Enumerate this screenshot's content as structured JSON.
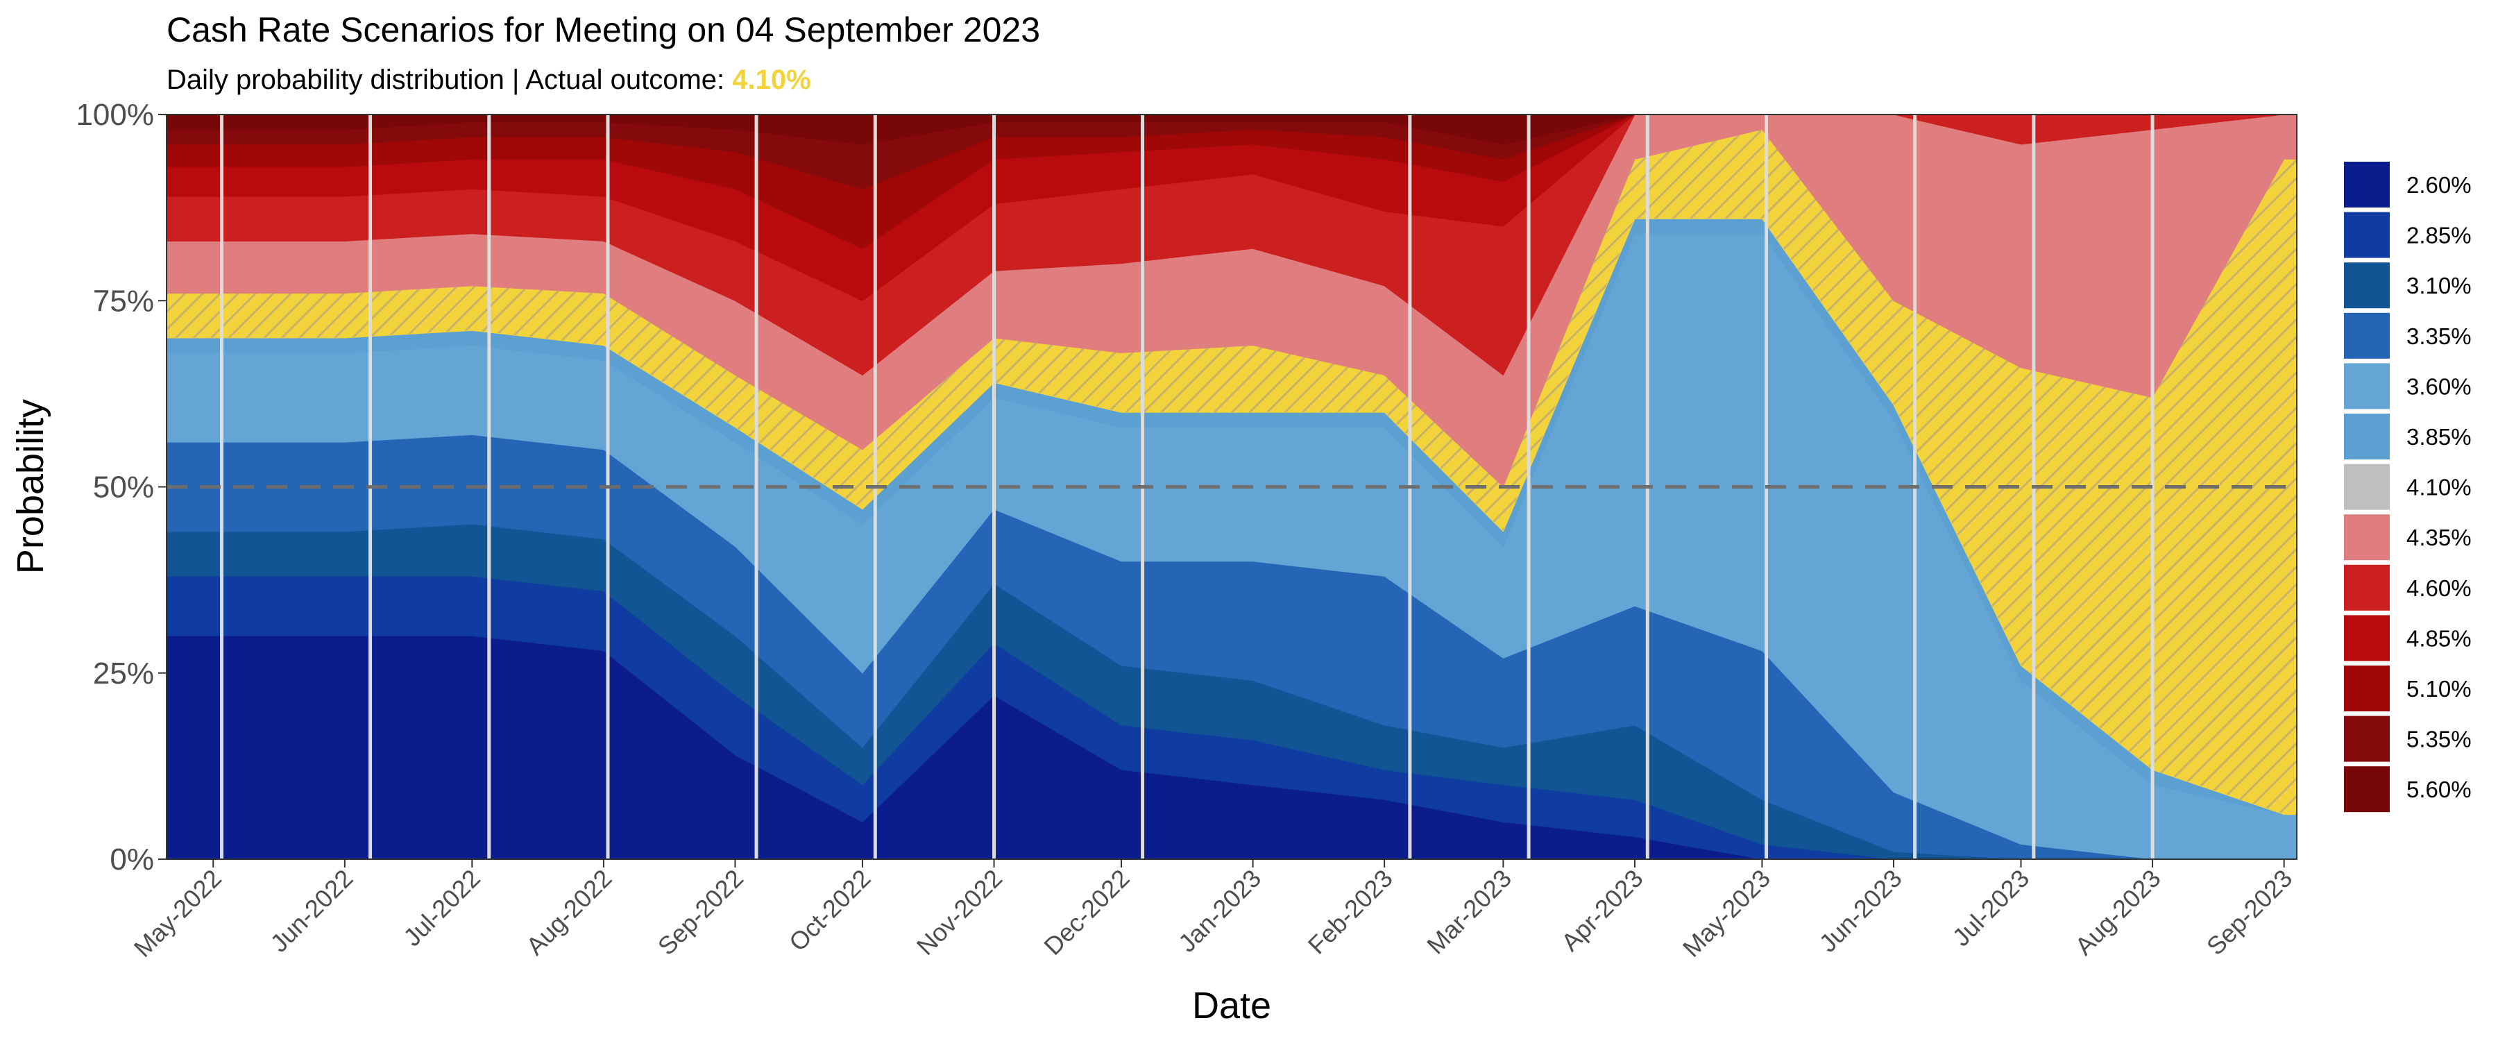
{
  "chart_data": {
    "type": "area",
    "stacked": true,
    "normalized": true,
    "title": "Cash Rate Scenarios for Meeting on 04 September 2023",
    "subtitle_prefix": "Daily probability distribution | Actual outcome: ",
    "subtitle_highlight": "4.10%",
    "highlight_color": "#f2d33c",
    "xlabel": "Date",
    "ylabel": "Probability",
    "ylim": [
      0,
      100
    ],
    "yticks": [
      "0%",
      "25%",
      "50%",
      "75%",
      "100%"
    ],
    "reference_line": {
      "y": 50,
      "style": "dashed",
      "color": "#6e6e6e"
    },
    "grid": false,
    "legend_position": "right",
    "x_dates": [
      "2022-05",
      "2022-06",
      "2022-07",
      "2022-08",
      "2022-09",
      "2022-10",
      "2022-11",
      "2022-12",
      "2023-01",
      "2023-02",
      "2023-03",
      "2023-04",
      "2023-05",
      "2023-06",
      "2023-07",
      "2023-08",
      "2023-09"
    ],
    "x_tick_labels": [
      "May-2022",
      "Jun-2022",
      "Jul-2022",
      "Aug-2022",
      "Sep-2022",
      "Oct-2022",
      "Nov-2022",
      "Dec-2022",
      "Jan-2023",
      "Feb-2023",
      "Mar-2023",
      "Apr-2023",
      "May-2023",
      "Jun-2023",
      "Jul-2023",
      "Aug-2023",
      "Sep-2023"
    ],
    "x_range": [
      "2022-04-20",
      "2023-09-04"
    ],
    "rba_meeting_dates": [
      "2022-05-03",
      "2022-06-07",
      "2022-07-05",
      "2022-08-02",
      "2022-09-06",
      "2022-10-04",
      "2022-11-01",
      "2022-12-06",
      "2023-02-07",
      "2023-03-07",
      "2023-04-04",
      "2023-05-02",
      "2023-06-06",
      "2023-07-04",
      "2023-08-01",
      "2023-09-05"
    ],
    "series": [
      {
        "name": "2.60%",
        "color": "#0b1d8c",
        "values": [
          30,
          30,
          30,
          28,
          14,
          5,
          22,
          12,
          10,
          8,
          5,
          3,
          0,
          0,
          0,
          0,
          0
        ]
      },
      {
        "name": "2.85%",
        "color": "#103ba0",
        "values": [
          8,
          8,
          8,
          8,
          8,
          5,
          7,
          6,
          6,
          4,
          5,
          5,
          2,
          0,
          0,
          0,
          0
        ]
      },
      {
        "name": "3.10%",
        "color": "#115595",
        "values": [
          6,
          6,
          7,
          7,
          8,
          5,
          8,
          8,
          8,
          6,
          5,
          10,
          6,
          1,
          0,
          0,
          0
        ]
      },
      {
        "name": "3.35%",
        "color": "#2465b6",
        "values": [
          12,
          12,
          12,
          12,
          12,
          10,
          10,
          14,
          16,
          20,
          12,
          16,
          20,
          8,
          2,
          0,
          0
        ]
      },
      {
        "name": "3.60%",
        "color": "#64a5d6",
        "values": [
          12,
          12,
          12,
          12,
          14,
          20,
          15,
          18,
          18,
          20,
          15,
          50,
          56,
          50,
          22,
          10,
          6
        ]
      },
      {
        "name": "3.85%",
        "color": "#5c9fd1",
        "values": [
          2,
          2,
          2,
          2,
          2,
          2,
          2,
          2,
          2,
          2,
          2,
          2,
          2,
          2,
          2,
          2,
          0
        ]
      },
      {
        "name": "4.10%",
        "color": "#f2d33c",
        "values": [
          6,
          6,
          6,
          7,
          7,
          8,
          6,
          8,
          9,
          5,
          6,
          8,
          12,
          14,
          40,
          50,
          88
        ]
      },
      {
        "name": "4.35%",
        "color": "#e07e7f",
        "values": [
          7,
          7,
          7,
          7,
          10,
          10,
          9,
          12,
          13,
          12,
          15,
          6,
          2,
          25,
          30,
          36,
          6
        ]
      },
      {
        "name": "4.60%",
        "color": "#cb1f20",
        "values": [
          6,
          6,
          6,
          6,
          8,
          10,
          9,
          10,
          10,
          10,
          20,
          0,
          0,
          0,
          4,
          2,
          0
        ]
      },
      {
        "name": "4.85%",
        "color": "#b90b0d",
        "values": [
          4,
          4,
          4,
          5,
          7,
          7,
          6,
          5,
          4,
          7,
          6,
          0,
          0,
          0,
          0,
          0,
          0
        ]
      },
      {
        "name": "5.10%",
        "color": "#a00808",
        "values": [
          3,
          3,
          3,
          3,
          5,
          8,
          3,
          2,
          2,
          3,
          3,
          0,
          0,
          0,
          0,
          0,
          0
        ]
      },
      {
        "name": "5.35%",
        "color": "#850a0b",
        "values": [
          2,
          2,
          2,
          2,
          3,
          6,
          2,
          2,
          1,
          2,
          2,
          0,
          0,
          0,
          0,
          0,
          0
        ]
      },
      {
        "name": "5.60%",
        "color": "#780708",
        "values": [
          2,
          2,
          1,
          1,
          2,
          4,
          1,
          1,
          1,
          1,
          4,
          0,
          0,
          0,
          0,
          0,
          0
        ]
      }
    ]
  }
}
